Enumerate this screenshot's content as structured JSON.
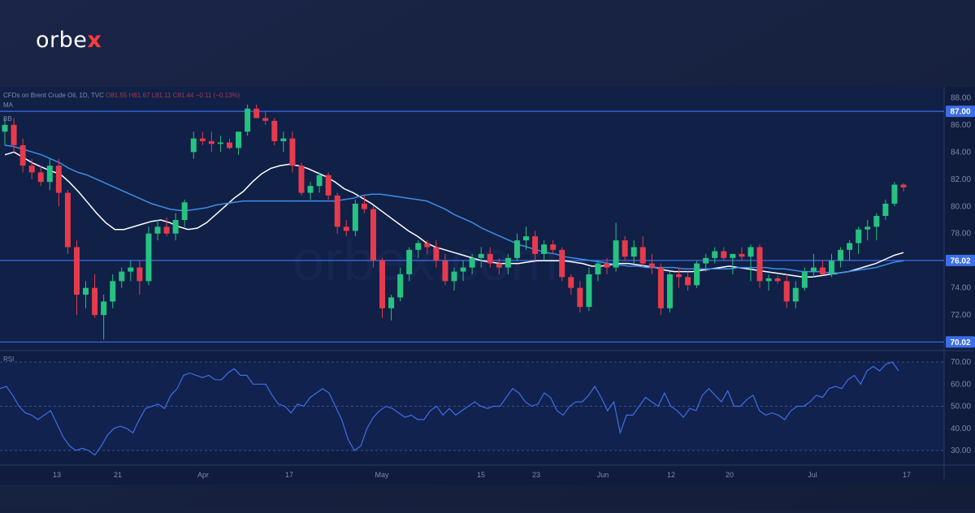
{
  "brand": {
    "name_prefix": "orbe",
    "name_x": "x"
  },
  "legend": {
    "instrument": "CFDs on Brent Crude Oil, 1D, TVC",
    "ohlc": "O81.55 H81.67 L81.11 C81.44 −0.11 (−0.13%)",
    "ma_label": "MA",
    "bb_label": "BB"
  },
  "rsi_label": "RSI",
  "price_axis": {
    "min": 69.5,
    "max": 88.5,
    "ticks": [
      72.0,
      74.0,
      76.0,
      78.0,
      80.0,
      82.0,
      84.0,
      86.0,
      88.0
    ]
  },
  "rsi_axis": {
    "ticks": [
      30.0,
      40.0,
      50.0,
      60.0,
      70.0
    ]
  },
  "levels": [
    {
      "value": 87.0,
      "label": "87.00"
    },
    {
      "value": 76.02,
      "label": "76.02"
    },
    {
      "value": 70.02,
      "label": "70.02"
    }
  ],
  "x_labels": [
    "13",
    "21",
    "Apr",
    "17",
    "May",
    "15",
    "23",
    "Jun",
    "12",
    "20",
    "Jul",
    "17"
  ],
  "colors": {
    "up": "#26c281",
    "down": "#e53b4c",
    "ma_fast": "#ffffff",
    "ma_slow": "#3d8ee8",
    "level": "#3d6ee8",
    "rsi": "#3d6ee8"
  },
  "chart_data": {
    "type": "candlestick",
    "title": "CFDs on Brent Crude Oil, 1D, TVC",
    "ylim": [
      69.5,
      88.5
    ],
    "candles": [
      [
        85.5,
        86.5,
        84.5,
        86.0
      ],
      [
        86.0,
        86.5,
        84.0,
        84.5
      ],
      [
        84.5,
        85.0,
        82.5,
        83.0
      ],
      [
        83.0,
        83.5,
        82.0,
        82.5
      ],
      [
        82.5,
        83.0,
        81.5,
        81.8
      ],
      [
        81.8,
        83.5,
        81.2,
        83.0
      ],
      [
        83.0,
        83.5,
        80.0,
        81.0
      ],
      [
        81.0,
        81.2,
        76.5,
        77.0
      ],
      [
        77.0,
        77.5,
        72.0,
        73.5
      ],
      [
        73.5,
        74.5,
        72.5,
        74.0
      ],
      [
        74.0,
        75.0,
        71.8,
        72.0
      ],
      [
        72.0,
        73.5,
        70.2,
        73.0
      ],
      [
        73.0,
        75.0,
        72.5,
        74.5
      ],
      [
        74.5,
        75.5,
        74.0,
        75.2
      ],
      [
        75.2,
        76.0,
        74.5,
        75.5
      ],
      [
        75.5,
        76.0,
        73.5,
        74.5
      ],
      [
        74.5,
        78.5,
        74.2,
        78.0
      ],
      [
        78.0,
        79.0,
        77.5,
        78.5
      ],
      [
        78.5,
        79.2,
        77.8,
        78.0
      ],
      [
        78.0,
        79.5,
        77.5,
        79.0
      ],
      [
        79.0,
        80.5,
        78.5,
        80.3
      ],
      [
        84.0,
        85.5,
        83.5,
        85.0
      ],
      [
        85.0,
        85.5,
        84.5,
        84.8
      ],
      [
        84.8,
        85.5,
        84.0,
        84.6
      ],
      [
        84.6,
        85.2,
        84.0,
        84.7
      ],
      [
        84.7,
        85.0,
        84.2,
        84.3
      ],
      [
        84.3,
        85.5,
        83.8,
        85.5
      ],
      [
        85.5,
        87.5,
        85.2,
        87.2
      ],
      [
        87.2,
        87.5,
        86.5,
        86.5
      ],
      [
        86.5,
        87.0,
        86.0,
        86.3
      ],
      [
        86.3,
        86.5,
        84.5,
        84.8
      ],
      [
        84.8,
        85.5,
        84.0,
        85.0
      ],
      [
        85.0,
        85.5,
        82.5,
        83.0
      ],
      [
        83.0,
        83.2,
        80.8,
        81.0
      ],
      [
        81.0,
        81.8,
        80.5,
        81.5
      ],
      [
        81.5,
        82.5,
        81.0,
        82.3
      ],
      [
        82.3,
        82.5,
        80.5,
        80.8
      ],
      [
        80.8,
        81.0,
        78.0,
        78.5
      ],
      [
        78.5,
        79.0,
        77.8,
        78.2
      ],
      [
        78.2,
        80.5,
        77.8,
        80.2
      ],
      [
        80.2,
        80.8,
        79.5,
        79.8
      ],
      [
        79.8,
        80.0,
        75.5,
        76.0
      ],
      [
        76.0,
        76.2,
        71.8,
        72.5
      ],
      [
        72.5,
        73.5,
        71.6,
        73.3
      ],
      [
        73.3,
        75.5,
        73.0,
        75.0
      ],
      [
        75.0,
        77.0,
        74.5,
        76.8
      ],
      [
        76.8,
        77.5,
        76.2,
        77.3
      ],
      [
        77.3,
        77.5,
        76.5,
        77.0
      ],
      [
        77.0,
        77.5,
        75.5,
        76.0
      ],
      [
        76.0,
        76.5,
        74.2,
        74.5
      ],
      [
        74.5,
        75.5,
        73.8,
        75.2
      ],
      [
        75.2,
        76.0,
        74.5,
        75.5
      ],
      [
        75.5,
        76.5,
        75.0,
        76.2
      ],
      [
        76.2,
        77.0,
        75.5,
        76.5
      ],
      [
        76.5,
        77.0,
        75.5,
        75.8
      ],
      [
        75.8,
        76.2,
        75.0,
        75.5
      ],
      [
        75.5,
        76.5,
        75.0,
        76.2
      ],
      [
        76.2,
        78.0,
        76.0,
        77.5
      ],
      [
        77.5,
        78.5,
        76.8,
        77.8
      ],
      [
        77.8,
        78.2,
        76.0,
        76.5
      ],
      [
        76.5,
        77.5,
        76.0,
        77.2
      ],
      [
        77.2,
        77.5,
        76.5,
        76.8
      ],
      [
        76.8,
        77.0,
        74.5,
        74.8
      ],
      [
        74.8,
        75.0,
        73.5,
        74.0
      ],
      [
        74.0,
        74.5,
        72.2,
        72.6
      ],
      [
        72.6,
        75.5,
        72.3,
        75.0
      ],
      [
        75.0,
        76.0,
        74.5,
        75.8
      ],
      [
        75.8,
        76.2,
        75.0,
        75.5
      ],
      [
        75.5,
        78.8,
        75.2,
        77.5
      ],
      [
        77.5,
        77.8,
        76.0,
        76.3
      ],
      [
        76.3,
        77.5,
        75.8,
        77.0
      ],
      [
        77.0,
        77.8,
        75.5,
        75.8
      ],
      [
        75.8,
        76.5,
        75.0,
        75.5
      ],
      [
        75.5,
        75.8,
        72.0,
        72.5
      ],
      [
        72.5,
        75.2,
        72.2,
        75.0
      ],
      [
        75.0,
        75.5,
        74.0,
        74.8
      ],
      [
        74.8,
        75.2,
        73.8,
        74.2
      ],
      [
        74.2,
        76.0,
        74.0,
        75.8
      ],
      [
        75.8,
        76.5,
        75.2,
        76.2
      ],
      [
        76.2,
        77.0,
        75.8,
        76.7
      ],
      [
        76.7,
        77.0,
        76.0,
        76.2
      ],
      [
        76.2,
        76.5,
        75.0,
        76.5
      ],
      [
        76.5,
        77.0,
        76.0,
        76.3
      ],
      [
        76.3,
        77.2,
        74.5,
        77.0
      ],
      [
        77.0,
        77.2,
        74.0,
        74.5
      ],
      [
        74.5,
        75.0,
        73.8,
        74.7
      ],
      [
        74.7,
        74.9,
        74.3,
        74.5
      ],
      [
        74.5,
        75.0,
        72.5,
        73.0
      ],
      [
        73.0,
        74.5,
        72.5,
        74.0
      ],
      [
        74.0,
        75.5,
        73.8,
        75.2
      ],
      [
        75.2,
        76.5,
        74.8,
        75.5
      ],
      [
        75.5,
        76.0,
        75.0,
        75.0
      ],
      [
        75.0,
        76.5,
        74.8,
        76.0
      ],
      [
        76.0,
        77.0,
        75.5,
        76.8
      ],
      [
        76.8,
        77.5,
        76.0,
        77.3
      ],
      [
        77.3,
        78.5,
        76.5,
        78.3
      ],
      [
        78.3,
        79.0,
        77.5,
        78.5
      ],
      [
        78.5,
        79.5,
        77.5,
        79.3
      ],
      [
        79.3,
        80.5,
        79.0,
        80.2
      ],
      [
        80.2,
        81.8,
        80.0,
        81.6
      ],
      [
        81.6,
        81.7,
        81.1,
        81.4
      ]
    ],
    "series": [
      {
        "values": [
          83.8,
          84.0,
          83.6,
          83.2,
          82.9,
          82.6,
          82.4,
          81.8,
          81.1,
          80.3,
          79.5,
          78.8,
          78.3,
          78.3,
          78.5,
          78.7,
          78.9,
          79.0,
          78.8,
          78.5,
          78.3,
          78.4,
          78.8,
          79.4,
          80.0,
          80.6,
          81.1,
          81.8,
          82.4,
          82.8,
          83.0,
          83.1,
          83.0,
          82.8,
          82.5,
          82.2,
          81.8,
          81.3,
          81.0,
          80.6,
          80.2,
          79.7,
          79.2,
          78.7,
          78.2,
          77.8,
          77.3,
          77.0,
          76.8,
          76.6,
          76.4,
          76.2,
          76.0,
          75.9,
          75.8,
          75.8,
          75.8,
          75.9,
          76.0,
          76.0,
          76.0,
          76.0,
          75.9,
          75.8,
          75.6,
          75.6,
          75.7,
          75.8,
          75.8,
          75.7,
          75.6,
          75.5,
          75.3,
          75.2,
          75.2,
          75.2,
          75.3,
          75.4,
          75.5,
          75.6,
          75.5,
          75.4,
          75.3,
          75.2,
          75.1,
          75.0,
          74.9,
          74.8,
          74.8,
          74.9,
          75.0,
          75.1,
          75.2,
          75.4,
          75.6,
          75.8,
          76.1,
          76.4,
          76.6
        ]
      },
      {
        "values": [
          84.5,
          84.4,
          84.2,
          84.0,
          83.8,
          83.5,
          83.2,
          82.8,
          82.5,
          82.3,
          82.0,
          81.7,
          81.4,
          81.1,
          80.8,
          80.5,
          80.2,
          80.0,
          79.8,
          79.7,
          79.7,
          79.8,
          79.9,
          80.1,
          80.2,
          80.3,
          80.4,
          80.4,
          80.4,
          80.4,
          80.4,
          80.4,
          80.4,
          80.4,
          80.4,
          80.4,
          80.4,
          80.5,
          80.6,
          80.8,
          80.9,
          80.9,
          80.8,
          80.7,
          80.6,
          80.5,
          80.4,
          80.1,
          79.8,
          79.4,
          79.1,
          78.8,
          78.4,
          78.1,
          77.8,
          77.5,
          77.2,
          77.0,
          76.8,
          76.6,
          76.5,
          76.3,
          76.2,
          76.1,
          76.0,
          75.9,
          75.8,
          75.7,
          75.6,
          75.6,
          75.5,
          75.5,
          75.5,
          75.5,
          75.4,
          75.4,
          75.4,
          75.4,
          75.4,
          75.4,
          75.5,
          75.5,
          75.5,
          75.5,
          75.4,
          75.4,
          75.3,
          75.2,
          75.2,
          75.2,
          75.1,
          75.1,
          75.2,
          75.3,
          75.4,
          75.5,
          75.7,
          75.9,
          76.0
        ]
      }
    ],
    "rsi": [
      58,
      59,
      55,
      50,
      47,
      46,
      44,
      46,
      48,
      42,
      36,
      32,
      30,
      31,
      30,
      28,
      32,
      37,
      40,
      41,
      40,
      38,
      44,
      49,
      50,
      51,
      49,
      55,
      58,
      64,
      65,
      64,
      63,
      64,
      62,
      62,
      65,
      67,
      64,
      64,
      60,
      60,
      60,
      55,
      51,
      50,
      47,
      51,
      50,
      54,
      56,
      58,
      56,
      50,
      44,
      35,
      30,
      32,
      40,
      45,
      48,
      50,
      49,
      47,
      45,
      46,
      44,
      44,
      48,
      50,
      46,
      49,
      46,
      48,
      50,
      52,
      50,
      49,
      50,
      50,
      54,
      58,
      56,
      52,
      50,
      51,
      56,
      54,
      48,
      46,
      50,
      52,
      52,
      55,
      59,
      54,
      48,
      52,
      38,
      46,
      46,
      50,
      54,
      52,
      50,
      56,
      50,
      48,
      45,
      49,
      48,
      55,
      58,
      55,
      52,
      57,
      50,
      50,
      53,
      55,
      48,
      46,
      47,
      46,
      44,
      48,
      50,
      50,
      52,
      55,
      54,
      58,
      59,
      58,
      62,
      64,
      60,
      66,
      68,
      66,
      69,
      70,
      66
    ],
    "ylabel": "",
    "xlabel": "",
    "grid": false,
    "legend_position": "top-left"
  }
}
